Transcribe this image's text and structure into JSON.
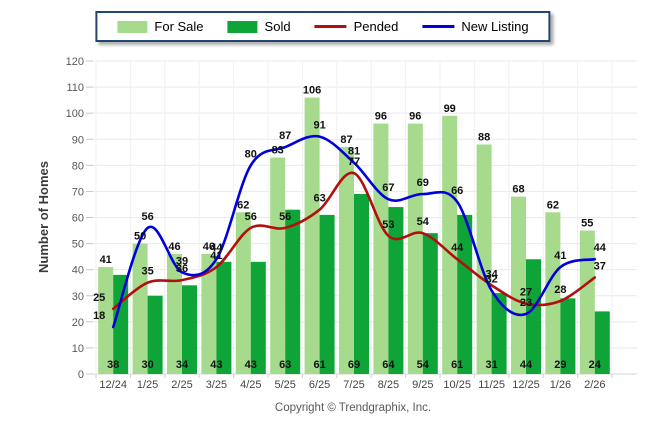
{
  "legend": {
    "items": [
      {
        "label": "For Sale",
        "type": "bar",
        "color": "#A6DA8D"
      },
      {
        "label": "Sold",
        "type": "bar",
        "color": "#0FA437"
      },
      {
        "label": "Pended",
        "type": "line",
        "color": "#B20F0F"
      },
      {
        "label": "New Listing",
        "type": "line",
        "color": "#0000DC"
      }
    ]
  },
  "footer": {
    "copyright": "Copyright © Trendgraphix, Inc."
  },
  "chart_data": {
    "type": "combo",
    "title": "",
    "xlabel": "",
    "ylabel": "Number of Homes",
    "ylim": [
      0,
      120
    ],
    "ytick_step": 10,
    "grid": true,
    "legend_position": "top",
    "categories": [
      "12/24",
      "1/25",
      "2/25",
      "3/25",
      "4/25",
      "5/25",
      "6/25",
      "7/25",
      "8/25",
      "9/25",
      "10/25",
      "11/25",
      "12/25",
      "1/26",
      "2/26"
    ],
    "series": [
      {
        "name": "For Sale",
        "type": "bar",
        "color": "#A6DA8D",
        "values": [
          41,
          50,
          46,
          46,
          62,
          83,
          106,
          87,
          96,
          96,
          99,
          88,
          68,
          62,
          55
        ]
      },
      {
        "name": "Sold",
        "type": "bar",
        "color": "#0FA437",
        "values": [
          38,
          30,
          34,
          43,
          43,
          63,
          61,
          69,
          64,
          54,
          61,
          31,
          44,
          29,
          24
        ]
      },
      {
        "name": "Pended",
        "type": "line",
        "color": "#B20F0F",
        "values": [
          25,
          35,
          36,
          41,
          56,
          56,
          63,
          77,
          53,
          54,
          44,
          34,
          27,
          28,
          37
        ]
      },
      {
        "name": "New Listing",
        "type": "line",
        "color": "#0000DC",
        "values": [
          18,
          56,
          39,
          44,
          80,
          87,
          91,
          81,
          67,
          69,
          66,
          32,
          23,
          41,
          44
        ]
      }
    ]
  }
}
